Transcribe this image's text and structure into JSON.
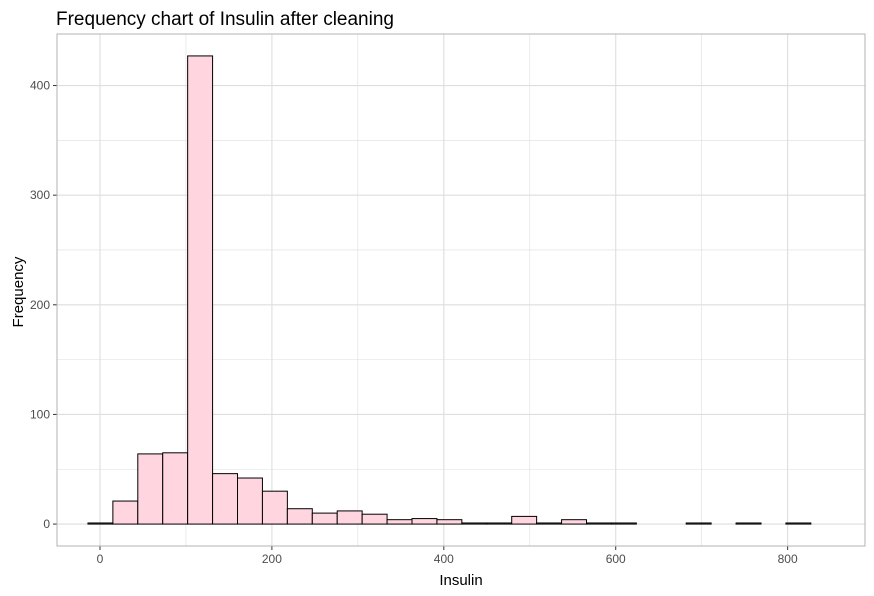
{
  "chart_data": {
    "type": "bar",
    "subtype": "histogram",
    "title": "Frequency chart of Insulin after cleaning",
    "xlabel": "Insulin",
    "ylabel": "Frequency",
    "xlim": [
      -50,
      890
    ],
    "ylim": [
      -20,
      447
    ],
    "x_ticks": [
      0,
      200,
      400,
      600,
      800
    ],
    "x_tick_labels": [
      "0",
      "200",
      "400",
      "600",
      "800"
    ],
    "y_ticks": [
      0,
      100,
      200,
      300,
      400
    ],
    "y_tick_labels": [
      "0",
      "100",
      "200",
      "300",
      "400"
    ],
    "bin_width": 29,
    "bins": [
      {
        "start": -14,
        "end": 15,
        "count": 1
      },
      {
        "start": 15,
        "end": 44,
        "count": 21
      },
      {
        "start": 44,
        "end": 73,
        "count": 64
      },
      {
        "start": 73,
        "end": 102,
        "count": 65
      },
      {
        "start": 102,
        "end": 131,
        "count": 427
      },
      {
        "start": 131,
        "end": 160,
        "count": 46
      },
      {
        "start": 160,
        "end": 189,
        "count": 42
      },
      {
        "start": 189,
        "end": 218,
        "count": 30
      },
      {
        "start": 218,
        "end": 247,
        "count": 14
      },
      {
        "start": 247,
        "end": 276,
        "count": 10
      },
      {
        "start": 276,
        "end": 305,
        "count": 12
      },
      {
        "start": 305,
        "end": 334,
        "count": 9
      },
      {
        "start": 334,
        "end": 363,
        "count": 4
      },
      {
        "start": 363,
        "end": 392,
        "count": 5
      },
      {
        "start": 392,
        "end": 421,
        "count": 4
      },
      {
        "start": 421,
        "end": 450,
        "count": 1
      },
      {
        "start": 450,
        "end": 479,
        "count": 1
      },
      {
        "start": 479,
        "end": 508,
        "count": 7
      },
      {
        "start": 508,
        "end": 537,
        "count": 1
      },
      {
        "start": 537,
        "end": 566,
        "count": 4
      },
      {
        "start": 566,
        "end": 595,
        "count": 1
      },
      {
        "start": 595,
        "end": 624,
        "count": 1
      },
      {
        "start": 624,
        "end": 653,
        "count": 0
      },
      {
        "start": 653,
        "end": 682,
        "count": 0
      },
      {
        "start": 682,
        "end": 711,
        "count": 1
      },
      {
        "start": 711,
        "end": 740,
        "count": 0
      },
      {
        "start": 740,
        "end": 769,
        "count": 1
      },
      {
        "start": 769,
        "end": 798,
        "count": 0
      },
      {
        "start": 798,
        "end": 827,
        "count": 1
      }
    ],
    "bar_fill": "#ffd6e0",
    "bar_stroke": "#000000",
    "grid": true,
    "grid_color": "#dedede",
    "panel_border_color": "#b3b3b3",
    "legend": "none"
  }
}
